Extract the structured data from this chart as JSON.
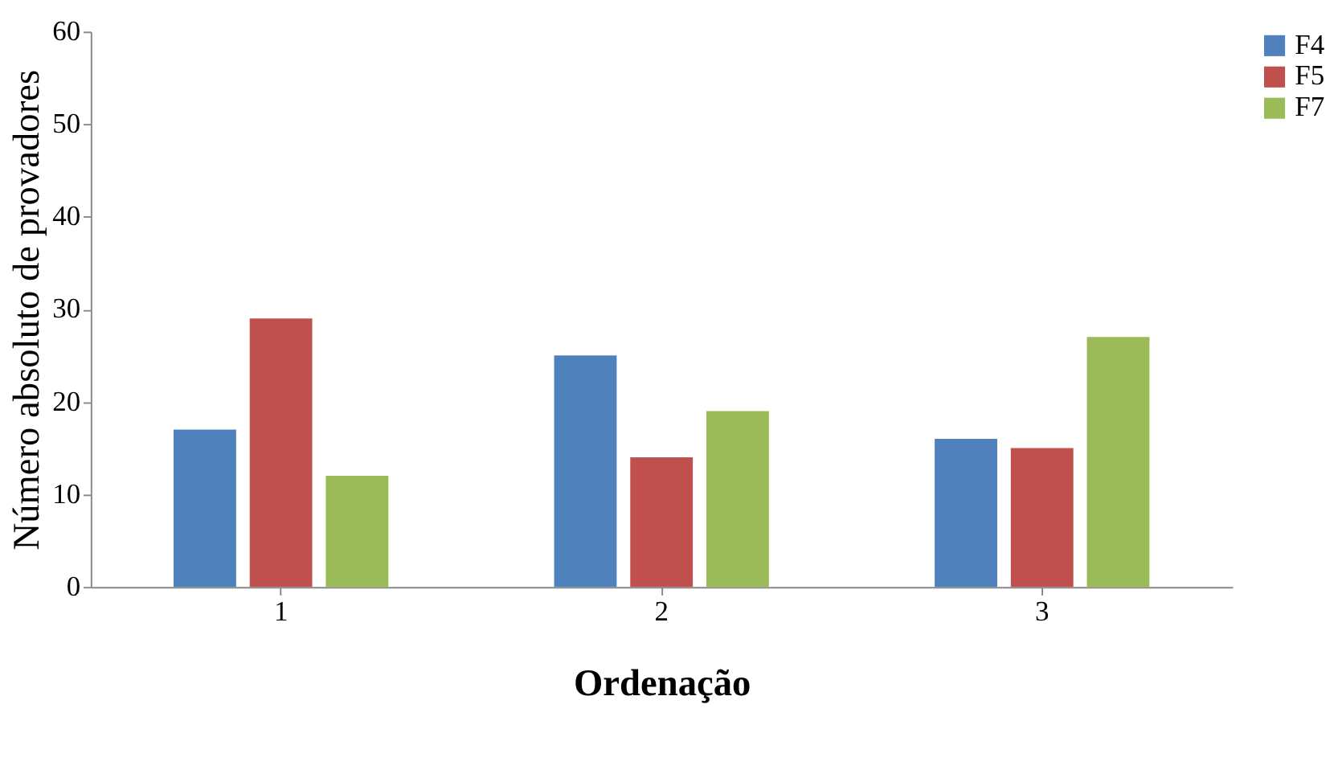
{
  "chart_data": {
    "type": "bar",
    "xlabel": "Ordenação",
    "ylabel": "Número absoluto de provadores",
    "categories": [
      "1",
      "2",
      "3"
    ],
    "series": [
      {
        "name": "F4",
        "color": "#4f81bd",
        "values": [
          17,
          25,
          16
        ]
      },
      {
        "name": "F5",
        "color": "#c0504d",
        "values": [
          29,
          14,
          15
        ]
      },
      {
        "name": "F7",
        "color": "#9bbb59",
        "values": [
          12,
          19,
          27
        ]
      }
    ],
    "ylim": [
      0,
      60
    ],
    "yticks": [
      0,
      10,
      20,
      30,
      40,
      50,
      60
    ],
    "grid": false,
    "legend": "top right"
  }
}
